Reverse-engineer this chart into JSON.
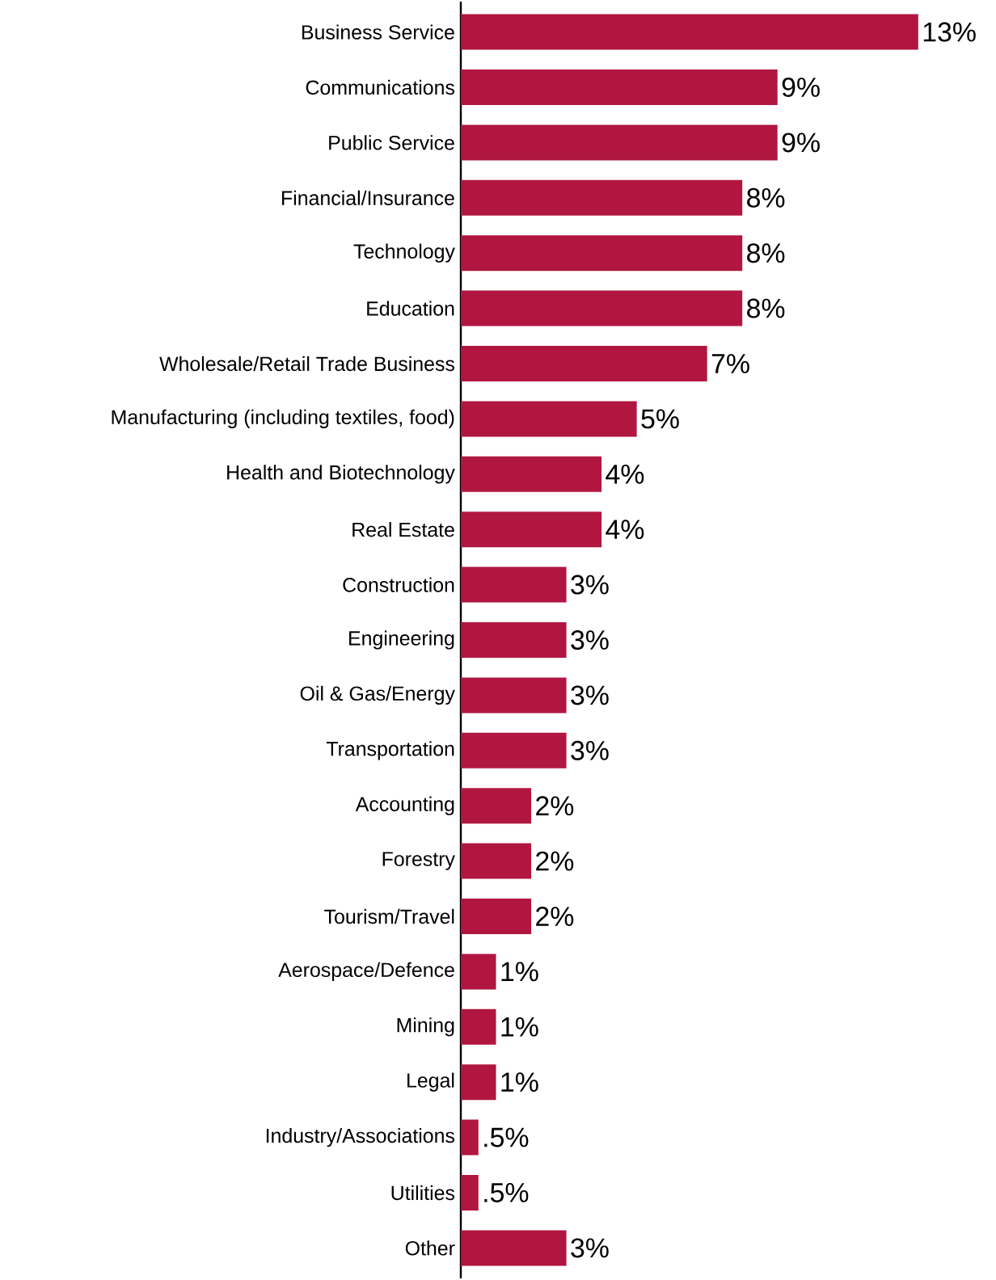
{
  "chart_data": {
    "type": "bar",
    "orientation": "horizontal",
    "color": "#b0163f",
    "categories": [
      "Business Service",
      "Communications",
      "Public Service",
      "Financial/Insurance",
      "Technology",
      "Education",
      "Wholesale/Retail Trade Business",
      "Manufacturing (including textiles, food)",
      "Health and Biotechnology",
      "Real Estate",
      "Construction",
      "Engineering",
      "Oil & Gas/Energy",
      "Transportation",
      "Accounting",
      "Forestry",
      "Tourism/Travel",
      "Aerospace/Defence",
      "Mining",
      "Legal",
      "Industry/Associations",
      "Utilities",
      "Other"
    ],
    "values": [
      13,
      9,
      9,
      8,
      8,
      8,
      7,
      5,
      4,
      4,
      3,
      3,
      3,
      3,
      2,
      2,
      2,
      1,
      1,
      1,
      0.5,
      0.5,
      3
    ],
    "value_labels": [
      "13%",
      "9%",
      "9%",
      "8%",
      "8%",
      "8%",
      "7%",
      "5%",
      "4%",
      "4%",
      "3%",
      "3%",
      "3%",
      "3%",
      "2%",
      "2%",
      "2%",
      "1%",
      "1%",
      "1%",
      ".5%",
      ".5%",
      "3%"
    ]
  }
}
